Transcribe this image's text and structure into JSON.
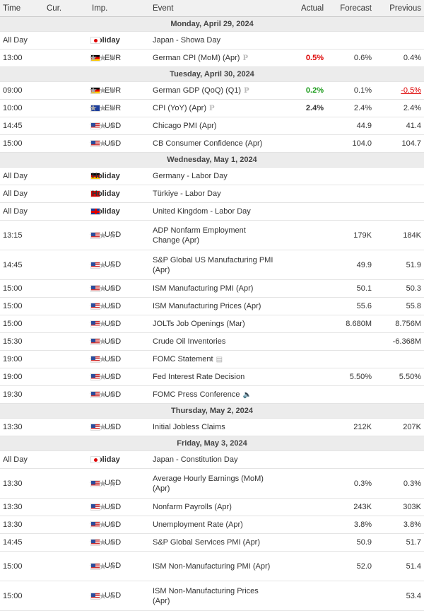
{
  "header": {
    "time": "Time",
    "cur": "Cur.",
    "imp": "Imp.",
    "event": "Event",
    "actual": "Actual",
    "forecast": "Forecast",
    "previous": "Previous"
  },
  "stars": "★★★",
  "p_mark": "P",
  "days": [
    {
      "label": "Monday, April 29, 2024"
    },
    {
      "label": "Tuesday, April 30, 2024"
    },
    {
      "label": "Wednesday, May 1, 2024"
    },
    {
      "label": "Thursday, May 2, 2024"
    },
    {
      "label": "Friday, May 3, 2024"
    }
  ],
  "rows": [
    {
      "time": "All Day",
      "flag": "jp",
      "imp": "Holiday",
      "event": "Japan - Showa Day"
    },
    {
      "time": "13:00",
      "flag": "de",
      "cur": "EUR",
      "event": "German CPI (MoM) (Apr)",
      "actual": "0.5%",
      "forecast": "0.6%",
      "previous": "0.4%"
    },
    {
      "time": "09:00",
      "flag": "de",
      "cur": "EUR",
      "event": "German GDP (QoQ) (Q1)",
      "actual": "0.2%",
      "forecast": "0.1%",
      "previous": "-0.5%"
    },
    {
      "time": "10:00",
      "flag": "eu",
      "cur": "EUR",
      "event": "CPI (YoY) (Apr)",
      "actual": "2.4%",
      "forecast": "2.4%",
      "previous": "2.4%"
    },
    {
      "time": "14:45",
      "flag": "us",
      "cur": "USD",
      "event": "Chicago PMI (Apr)",
      "forecast": "44.9",
      "previous": "41.4"
    },
    {
      "time": "15:00",
      "flag": "us",
      "cur": "USD",
      "event": "CB Consumer Confidence (Apr)",
      "forecast": "104.0",
      "previous": "104.7"
    },
    {
      "time": "All Day",
      "flag": "de",
      "imp": "Holiday",
      "event": "Germany - Labor Day"
    },
    {
      "time": "All Day",
      "flag": "tr",
      "imp": "Holiday",
      "event": "Türkiye - Labor Day"
    },
    {
      "time": "All Day",
      "flag": "gb",
      "imp": "Holiday",
      "event": "United Kingdom - Labor Day"
    },
    {
      "time": "13:15",
      "flag": "us",
      "cur": "USD",
      "event": "ADP Nonfarm Employment Change (Apr)",
      "forecast": "179K",
      "previous": "184K"
    },
    {
      "time": "14:45",
      "flag": "us",
      "cur": "USD",
      "event": "S&P Global US Manufacturing PMI (Apr)",
      "forecast": "49.9",
      "previous": "51.9"
    },
    {
      "time": "15:00",
      "flag": "us",
      "cur": "USD",
      "event": "ISM Manufacturing PMI (Apr)",
      "forecast": "50.1",
      "previous": "50.3"
    },
    {
      "time": "15:00",
      "flag": "us",
      "cur": "USD",
      "event": "ISM Manufacturing Prices (Apr)",
      "forecast": "55.6",
      "previous": "55.8"
    },
    {
      "time": "15:00",
      "flag": "us",
      "cur": "USD",
      "event": "JOLTs Job Openings (Mar)",
      "forecast": "8.680M",
      "previous": "8.756M"
    },
    {
      "time": "15:30",
      "flag": "us",
      "cur": "USD",
      "event": "Crude Oil Inventories",
      "previous": "-6.368M"
    },
    {
      "time": "19:00",
      "flag": "us",
      "cur": "USD",
      "event": "FOMC Statement"
    },
    {
      "time": "19:00",
      "flag": "us",
      "cur": "USD",
      "event": "Fed Interest Rate Decision",
      "forecast": "5.50%",
      "previous": "5.50%"
    },
    {
      "time": "19:30",
      "flag": "us",
      "cur": "USD",
      "event": "FOMC Press Conference"
    },
    {
      "time": "13:30",
      "flag": "us",
      "cur": "USD",
      "event": "Initial Jobless Claims",
      "forecast": "212K",
      "previous": "207K"
    },
    {
      "time": "All Day",
      "flag": "jp",
      "imp": "Holiday",
      "event": "Japan - Constitution Day"
    },
    {
      "time": "13:30",
      "flag": "us",
      "cur": "USD",
      "event": "Average Hourly Earnings (MoM) (Apr)",
      "forecast": "0.3%",
      "previous": "0.3%"
    },
    {
      "time": "13:30",
      "flag": "us",
      "cur": "USD",
      "event": "Nonfarm Payrolls (Apr)",
      "forecast": "243K",
      "previous": "303K"
    },
    {
      "time": "13:30",
      "flag": "us",
      "cur": "USD",
      "event": "Unemployment Rate (Apr)",
      "forecast": "3.8%",
      "previous": "3.8%"
    },
    {
      "time": "14:45",
      "flag": "us",
      "cur": "USD",
      "event": "S&P Global Services PMI (Apr)",
      "forecast": "50.9",
      "previous": "51.7"
    },
    {
      "time": "15:00",
      "flag": "us",
      "cur": "USD",
      "event": "ISM Non-Manufacturing PMI (Apr)",
      "forecast": "52.0",
      "previous": "51.4"
    },
    {
      "time": "15:00",
      "flag": "us",
      "cur": "USD",
      "event": "ISM Non-Manufacturing Prices (Apr)",
      "previous": "53.4"
    }
  ]
}
